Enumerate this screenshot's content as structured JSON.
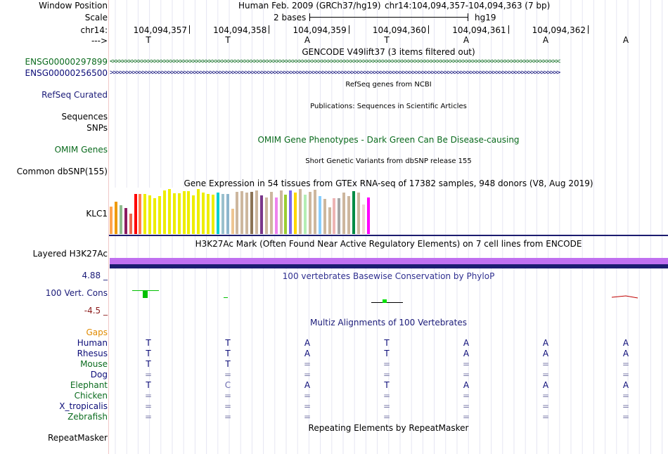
{
  "header": {
    "window_position_label": "Window Position",
    "scale_label": "Scale",
    "chrom_label": "chr14:",
    "strand_label": "--->",
    "assembly": "Human Feb. 2009 (GRCh37/hg19)",
    "position": "chr14:104,094,357-104,094,363 (7 bp)",
    "scale_text": "2 bases",
    "db": "hg19",
    "coords": [
      "104,094,357",
      "104,094,358",
      "104,094,359",
      "104,094,360",
      "104,094,361",
      "104,094,362"
    ],
    "bases": [
      "T",
      "T",
      "A",
      "T",
      "A",
      "A",
      "A"
    ]
  },
  "tracks": {
    "gencode": {
      "title": "GENCODE V49lift37 (3 items filtered out)",
      "gene1": "ENSG00000297899",
      "gene2": "ENSG00000256500"
    },
    "refseq": {
      "label": "RefSeq Curated",
      "title": "RefSeq genes from NCBI"
    },
    "sequences": {
      "label": "Sequences",
      "title": "Publications: Sequences in Scientific Articles"
    },
    "snps": {
      "label": "SNPs"
    },
    "omim": {
      "label": "OMIM Genes",
      "title": "OMIM Gene Phenotypes - Dark Green Can Be Disease-causing"
    },
    "dbsnp": {
      "label": "Common dbSNP(155)",
      "title": "Short Genetic Variants from dbSNP release 155"
    },
    "gtex": {
      "title": "Gene Expression in 54 tissues from GTEx RNA-seq of 17382 samples, 948 donors (V8, Aug 2019)",
      "gene": "KLC1"
    },
    "h3k27ac": {
      "label": "Layered H3K27Ac",
      "title": "H3K27Ac Mark (Often Found Near Active Regulatory Elements) on 7 cell lines from ENCODE"
    },
    "cons": {
      "label": "100 Vert. Cons",
      "title": "100 vertebrates Basewise Conservation by PhyloP",
      "max": "4.88 _",
      "min": "-4.5 _"
    },
    "multiz": {
      "title": "Multiz Alignments of 100 Vertebrates",
      "gaps_label": "Gaps",
      "species": [
        {
          "name": "Human",
          "bases": [
            "T",
            "T",
            "A",
            "T",
            "A",
            "A",
            "A"
          ]
        },
        {
          "name": "Rhesus",
          "bases": [
            "T",
            "T",
            "A",
            "T",
            "A",
            "A",
            "A"
          ]
        },
        {
          "name": "Mouse",
          "bases": [
            "T",
            "T",
            "=",
            "=",
            "=",
            "=",
            "="
          ]
        },
        {
          "name": "Dog",
          "bases": [
            "=",
            "=",
            "=",
            "=",
            "=",
            "=",
            "="
          ]
        },
        {
          "name": "Elephant",
          "bases": [
            "T",
            "C",
            "A",
            "T",
            "A",
            "A",
            "A"
          ]
        },
        {
          "name": "Chicken",
          "bases": [
            "=",
            "=",
            "=",
            "=",
            "=",
            "=",
            "="
          ]
        },
        {
          "name": "X_tropicalis",
          "bases": [
            "=",
            "=",
            "=",
            "=",
            "=",
            "=",
            "="
          ]
        },
        {
          "name": "Zebrafish",
          "bases": [
            "=",
            "=",
            "=",
            "=",
            "=",
            "=",
            "="
          ]
        }
      ]
    },
    "repeatmasker": {
      "label": "RepeatMasker",
      "title": "Repeating Elements by RepeatMasker"
    }
  },
  "gtex_data": {
    "values": [
      44,
      52,
      46,
      42,
      33,
      64,
      64,
      64,
      62,
      57,
      61,
      70,
      72,
      65,
      65,
      69,
      69,
      62,
      72,
      66,
      64,
      63,
      66,
      64,
      64,
      40,
      68,
      69,
      66,
      68,
      70,
      62,
      59,
      68,
      59,
      70,
      63,
      70,
      66,
      72,
      63,
      68,
      71,
      61,
      56,
      43,
      57,
      57,
      66,
      61,
      69,
      66,
      47,
      58
    ],
    "colors": [
      "#FFA54F",
      "#EE9A00",
      "#8FBC8F",
      "#8B1C62",
      "#EE6A50",
      "#FF0000",
      "#FF7F50",
      "#EEEE00",
      "#EEEE00",
      "#EEEE00",
      "#EEEE00",
      "#EEEE00",
      "#EEEE00",
      "#EEEE00",
      "#EEEE00",
      "#EEEE00",
      "#EEEE00",
      "#EEEE00",
      "#EEEE00",
      "#EEEE00",
      "#EEEE00",
      "#EEEE00",
      "#00CED1",
      "#9AC0CD",
      "#8DB6CD",
      "#EEC591",
      "#CDB79E",
      "#CDB79E",
      "#CDB79E",
      "#8B7355",
      "#CDB79E",
      "#7A378B",
      "#CDB79E",
      "#CDB79E",
      "#EE82EE",
      "#CDB79E",
      "#9ACD32",
      "#7A67EE",
      "#FFD700",
      "#CDB79E",
      "#B4EEB4",
      "#CDB79E",
      "#CDB79E",
      "#87CEFF",
      "#CDB79E",
      "#CDB79E",
      "#EEB4B4",
      "#A6A6A6",
      "#CDB79E",
      "#CDB79E",
      "#008B45",
      "#CDB79E",
      "#EED5D2",
      "#FF00FF"
    ]
  },
  "colors": {
    "gencode_green": "#0b6b1e",
    "gencode_blue": "#0c0c78",
    "navy": "#1a1a78",
    "omim_green": "#0b6b1e",
    "cons_title": "#303090",
    "cons_min": "#8b1a1a",
    "gaps": "#e08a00",
    "h3k27_purple": "#c070f0",
    "h3k27_blue": "#1c1c70"
  }
}
